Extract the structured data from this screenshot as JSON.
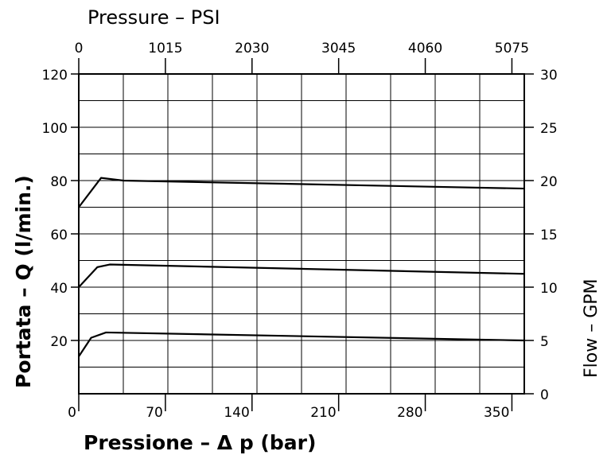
{
  "chart_data": {
    "type": "line",
    "title_top_axis": "Pressure  –  PSI",
    "xlabel": "Pressione  –  Δ p  (bar)",
    "ylabel_left": "Portata  –  Q  (l/min.)",
    "ylabel_right": "Flow  –  GPM",
    "x_range": [
      0,
      360
    ],
    "y_range": [
      0,
      120
    ],
    "bottom_ticks": [
      {
        "value": 0,
        "label": "0"
      },
      {
        "value": 70,
        "label": "70"
      },
      {
        "value": 140,
        "label": "140"
      },
      {
        "value": 210,
        "label": "210"
      },
      {
        "value": 280,
        "label": "280"
      },
      {
        "value": 350,
        "label": "350"
      }
    ],
    "top_ticks": [
      {
        "value": 0,
        "label": "0"
      },
      {
        "value": 70,
        "label": "1015"
      },
      {
        "value": 140,
        "label": "2030"
      },
      {
        "value": 210,
        "label": "3045"
      },
      {
        "value": 280,
        "label": "4060"
      },
      {
        "value": 350,
        "label": "5075"
      }
    ],
    "left_ticks": [
      {
        "value": 20,
        "label": "20"
      },
      {
        "value": 40,
        "label": "40"
      },
      {
        "value": 60,
        "label": "60"
      },
      {
        "value": 80,
        "label": "80"
      },
      {
        "value": 100,
        "label": "100"
      },
      {
        "value": 120,
        "label": "120"
      }
    ],
    "right_ticks": [
      {
        "value": 0,
        "label": "0"
      },
      {
        "value": 20,
        "label": "5"
      },
      {
        "value": 40,
        "label": "10"
      },
      {
        "value": 60,
        "label": "15"
      },
      {
        "value": 80,
        "label": "20"
      },
      {
        "value": 100,
        "label": "25"
      },
      {
        "value": 120,
        "label": "30"
      }
    ],
    "grid_x": [
      0,
      36,
      72,
      108,
      144,
      180,
      216,
      252,
      288,
      324,
      360
    ],
    "grid_y": [
      0,
      10,
      20,
      30,
      40,
      50,
      60,
      70,
      80,
      90,
      100,
      110,
      120
    ],
    "series": [
      {
        "x": [
          0,
          18,
          36,
          360
        ],
        "y": [
          70,
          81,
          80,
          77
        ]
      },
      {
        "x": [
          0,
          15,
          25,
          360
        ],
        "y": [
          40,
          47.5,
          48.5,
          45
        ]
      },
      {
        "x": [
          0,
          10,
          22,
          360
        ],
        "y": [
          14,
          21,
          23,
          20
        ]
      }
    ]
  }
}
